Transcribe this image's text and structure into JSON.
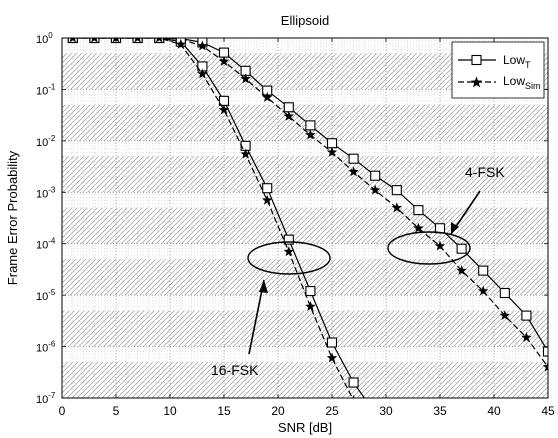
{
  "chart_data": {
    "type": "line",
    "title": "Ellipsoid",
    "xlabel": "SNR [dB]",
    "ylabel": "Frame Error Probability",
    "xlim": [
      0,
      45
    ],
    "ylim": [
      1e-07,
      1
    ],
    "yscale": "log",
    "grid": true,
    "legend_position": "top-right",
    "x_ticks": [
      0,
      5,
      10,
      15,
      20,
      25,
      30,
      35,
      40,
      45
    ],
    "x_tick_labels": [
      "0",
      "5",
      "10",
      "15",
      "20",
      "25",
      "30",
      "35",
      "40",
      "45"
    ],
    "y_ticks": [
      1,
      0.1,
      0.01,
      0.001,
      0.0001,
      1e-05,
      1e-06,
      1e-07
    ],
    "y_tick_labels": [
      {
        "base": "10",
        "exp": "0"
      },
      {
        "base": "10",
        "exp": "-1"
      },
      {
        "base": "10",
        "exp": "-2"
      },
      {
        "base": "10",
        "exp": "-3"
      },
      {
        "base": "10",
        "exp": "-4"
      },
      {
        "base": "10",
        "exp": "-5"
      },
      {
        "base": "10",
        "exp": "-6"
      },
      {
        "base": "10",
        "exp": "-7"
      }
    ],
    "legend": [
      {
        "base": "Low",
        "sub": "T",
        "marker": "square",
        "line": "solid"
      },
      {
        "base": "Low",
        "sub": "Sim",
        "marker": "star",
        "line": "dashed"
      }
    ],
    "series": [
      {
        "marker": "square",
        "line": "solid",
        "group": "4-FSK",
        "x": [
          1,
          3,
          5,
          7,
          9,
          11,
          13,
          15,
          17,
          19,
          21,
          23,
          25,
          27,
          29,
          31,
          33,
          35,
          37,
          39,
          41,
          43,
          45
        ],
        "y": [
          1,
          1,
          1,
          1,
          1,
          0.98,
          0.82,
          0.52,
          0.23,
          0.095,
          0.045,
          0.02,
          0.009,
          0.0045,
          0.0021,
          0.0011,
          0.00045,
          0.0002,
          8e-05,
          3e-05,
          1.1e-05,
          4e-06,
          8e-07
        ]
      },
      {
        "marker": "star",
        "line": "dashed",
        "group": "4-FSK",
        "x": [
          1,
          3,
          5,
          7,
          9,
          11,
          13,
          15,
          17,
          19,
          21,
          23,
          25,
          27,
          29,
          31,
          33,
          35,
          37,
          39,
          41,
          43,
          45
        ],
        "y": [
          1,
          1,
          1,
          1,
          1,
          0.95,
          0.7,
          0.35,
          0.16,
          0.07,
          0.03,
          0.013,
          0.006,
          0.0025,
          0.0011,
          0.0005,
          0.0002,
          9e-05,
          3e-05,
          1.2e-05,
          4e-06,
          1.5e-06,
          4e-07
        ]
      },
      {
        "marker": "square",
        "line": "solid",
        "group": "16-FSK",
        "x": [
          1,
          3,
          5,
          7,
          9,
          11,
          13,
          15,
          17,
          19,
          21,
          23,
          25,
          27,
          29
        ],
        "y": [
          1,
          1,
          1,
          1,
          1,
          0.85,
          0.28,
          0.06,
          0.008,
          0.0012,
          0.00012,
          1.2e-05,
          1.2e-06,
          2e-07,
          5e-08
        ]
      },
      {
        "marker": "star",
        "line": "dashed",
        "group": "16-FSK",
        "x": [
          1,
          3,
          5,
          7,
          9,
          11,
          13,
          15,
          17,
          19,
          21,
          23,
          25,
          27,
          29
        ],
        "y": [
          1,
          1,
          1,
          1,
          1,
          0.75,
          0.2,
          0.04,
          0.0055,
          0.0007,
          7e-05,
          6e-06,
          6e-07,
          9e-08,
          2e-08
        ]
      }
    ],
    "annotations": [
      {
        "text": "4-FSK",
        "target": "4-FSK"
      },
      {
        "text": "16-FSK",
        "target": "16-FSK"
      }
    ]
  }
}
